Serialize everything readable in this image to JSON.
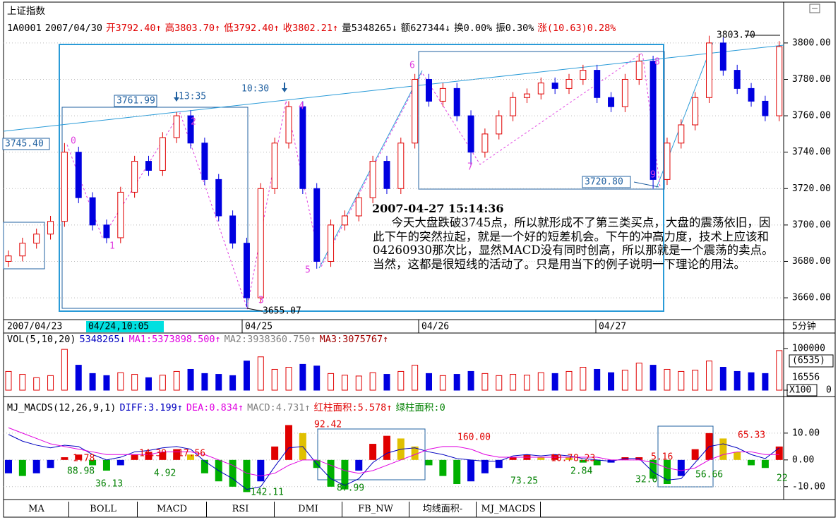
{
  "header": {
    "title": "上证指数",
    "items": [
      {
        "text": "1A0001",
        "color": "#000000"
      },
      {
        "text": "2007/04/30",
        "color": "#000000"
      },
      {
        "text": "开3792.40↑",
        "color": "#e00000"
      },
      {
        "text": "高3803.70↑",
        "color": "#e00000"
      },
      {
        "text": "低3792.40↑",
        "color": "#e00000"
      },
      {
        "text": "收3802.21↑",
        "color": "#e00000"
      },
      {
        "text": "量5348265↓",
        "color": "#000000"
      },
      {
        "text": "额627344↓",
        "color": "#000000"
      },
      {
        "text": "换0.00%",
        "color": "#000000"
      },
      {
        "text": "振0.30%",
        "color": "#000000"
      },
      {
        "text": "涨(10.63)0.28%",
        "color": "#e00000"
      }
    ]
  },
  "chart_data": [
    {
      "type": "candlestick",
      "open": [
        3680,
        3683,
        3690,
        3695,
        3702,
        3740,
        3715,
        3700,
        3693,
        3718,
        3735,
        3730,
        3748,
        3760,
        3745,
        3725,
        3705,
        3690,
        3660,
        3720,
        3745,
        3765,
        3720,
        3680,
        3700,
        3705,
        3715,
        3735,
        3720,
        3745,
        3780,
        3768,
        3775,
        3760,
        3740,
        3750,
        3760,
        3770,
        3772,
        3778,
        3775,
        3780,
        3785,
        3770,
        3765,
        3780,
        3790,
        3725,
        3745,
        3755,
        3770,
        3800,
        3785,
        3775,
        3768,
        3760
      ],
      "high": [
        3686,
        3693,
        3698,
        3705,
        3745,
        3743,
        3718,
        3703,
        3721,
        3738,
        3738,
        3751,
        3762,
        3763,
        3748,
        3728,
        3708,
        3693,
        3723,
        3748,
        3768,
        3768,
        3723,
        3703,
        3708,
        3718,
        3738,
        3738,
        3748,
        3783,
        3783,
        3778,
        3778,
        3763,
        3753,
        3763,
        3773,
        3775,
        3781,
        3781,
        3783,
        3788,
        3788,
        3773,
        3783,
        3794,
        3793,
        3748,
        3758,
        3773,
        3804,
        3803,
        3788,
        3778,
        3771,
        3801
      ],
      "low": [
        3677,
        3680,
        3687,
        3692,
        3699,
        3712,
        3697,
        3690,
        3690,
        3715,
        3727,
        3727,
        3745,
        3742,
        3722,
        3702,
        3687,
        3655,
        3657,
        3717,
        3742,
        3717,
        3676,
        3677,
        3697,
        3702,
        3712,
        3717,
        3717,
        3742,
        3765,
        3765,
        3757,
        3733,
        3737,
        3747,
        3757,
        3767,
        3769,
        3772,
        3772,
        3777,
        3767,
        3762,
        3762,
        3777,
        3720,
        3722,
        3742,
        3752,
        3767,
        3782,
        3772,
        3765,
        3757,
        3757
      ],
      "close": [
        3683,
        3690,
        3695,
        3702,
        3740,
        3715,
        3700,
        3693,
        3718,
        3735,
        3730,
        3748,
        3760,
        3745,
        3725,
        3705,
        3690,
        3660,
        3720,
        3745,
        3765,
        3720,
        3680,
        3700,
        3705,
        3715,
        3735,
        3720,
        3745,
        3780,
        3768,
        3775,
        3760,
        3740,
        3750,
        3760,
        3770,
        3772,
        3778,
        3775,
        3780,
        3785,
        3770,
        3765,
        3780,
        3790,
        3725,
        3745,
        3755,
        3770,
        3800,
        3785,
        3775,
        3768,
        3760,
        3798
      ],
      "ylim": [
        3648.4,
        3820.5
      ],
      "yticks": [
        {
          "value": 3800,
          "label": "3800.00"
        },
        {
          "value": 3780,
          "label": "3780.00"
        },
        {
          "value": 3760,
          "label": "3760.00"
        },
        {
          "value": 3740,
          "label": "3740.00"
        },
        {
          "value": 3720,
          "label": "3720.00"
        },
        {
          "value": 3700,
          "label": "3700.00"
        },
        {
          "value": 3680,
          "label": "3680.00"
        },
        {
          "value": 3660,
          "label": "3660.00"
        }
      ],
      "grid": true,
      "up_color": "#e00000",
      "down_color": "#0000e0",
      "price_labels": [
        "3745.40",
        "3761.99",
        "3720.80",
        "3803.70",
        "3655.07"
      ],
      "time_labels": [
        "13:35",
        "10:30"
      ],
      "wave_labels": [
        "0",
        "1",
        "2",
        "3",
        "4",
        "5",
        "6",
        "7",
        "8",
        "9"
      ],
      "note_time": "2007-04-27 15:14:36",
      "note": "今天大盘跌破3745点，所以就形成不了第三类买点，大盘的震荡依旧，因此下午的突然拉起，就是一个好的短差机会。下午的冲高力度，技术上应该和04260930那次比，显然MACD没有同时创高，所以那就是一个震荡的卖点。当然，这都是很短线的活动了。只是用当下的例子说明一下理论的用法。",
      "x_labels": [
        "2007/04/23",
        "04/24,10:05",
        "04/25",
        "04/26",
        "04/27",
        "5分钟"
      ]
    },
    {
      "type": "volume",
      "header": [
        {
          "text": "VOL(5,10,20)",
          "color": "#000000"
        },
        {
          "text": "5348265↓",
          "color": "#0000c0"
        },
        {
          "text": "MA1:5373898.500↑",
          "color": "#e000e0"
        },
        {
          "text": "MA2:3938360.750↑",
          "color": "#808080"
        },
        {
          "text": "MA3:3075767↑",
          "color": "#a00000"
        }
      ],
      "values": [
        45000,
        38000,
        30000,
        35000,
        98000,
        60000,
        40000,
        35000,
        42000,
        38000,
        30000,
        36000,
        45000,
        50000,
        40000,
        38000,
        35000,
        70000,
        80000,
        50000,
        55000,
        62000,
        58000,
        40000,
        36000,
        34000,
        42000,
        38000,
        45000,
        60000,
        40000,
        35000,
        38000,
        45000,
        40000,
        35000,
        38000,
        36000,
        42000,
        40000,
        45000,
        55000,
        50000,
        42000,
        48000,
        65000,
        60000,
        50000,
        45000,
        48000,
        70000,
        55000,
        45000,
        42000,
        40000,
        95000
      ],
      "ylim": [
        0,
        105000
      ],
      "yticks": [
        100000,
        0
      ],
      "side_labels": [
        "(6535)",
        "16556",
        "X100"
      ]
    },
    {
      "type": "macd",
      "header": [
        {
          "text": "MJ_MACDS(12,26,9,1)",
          "color": "#000000"
        },
        {
          "text": "DIFF:3.199↑",
          "color": "#0000c0"
        },
        {
          "text": "DEA:0.834↑",
          "color": "#e000e0"
        },
        {
          "text": "MACD:4.731↑",
          "color": "#808080"
        },
        {
          "text": "红柱面积:5.578↑",
          "color": "#e00000"
        },
        {
          "text": "绿柱面积:0",
          "color": "#008000"
        }
      ],
      "series": [
        {
          "name": "MACD",
          "values": [
            -5,
            -6,
            -5,
            -3,
            1,
            2,
            -2,
            -4,
            -2,
            2,
            3,
            3,
            4,
            2,
            -5,
            -8,
            -10,
            -12,
            -8,
            5,
            13,
            10,
            -3,
            -10,
            -11,
            -4,
            6,
            9,
            8,
            5,
            -2,
            -6,
            -9,
            -8,
            -5,
            -3,
            1,
            2,
            1,
            2,
            1,
            -1,
            -2,
            -1,
            1,
            1,
            -7,
            -9,
            -6,
            4,
            10,
            8,
            3,
            -2,
            -3,
            5
          ]
        },
        {
          "name": "DIFF",
          "color": "#0000c0",
          "values": [
            9.5,
            7,
            5.5,
            4.5,
            5.5,
            5,
            2,
            0,
            1,
            3,
            3.5,
            4.5,
            5,
            4,
            -0.5,
            -4,
            -7,
            -11,
            -10,
            -2.5,
            4.5,
            5,
            -1.5,
            -7,
            -9.5,
            -7,
            -1,
            2.5,
            4,
            4.5,
            3,
            2,
            0.5,
            0,
            -0.5,
            -0.5,
            1.5,
            2,
            1.5,
            2,
            1.5,
            0.5,
            0,
            -0.5,
            0.5,
            0.5,
            -4.5,
            -7.5,
            -7,
            -1,
            5,
            6,
            4.5,
            2,
            0.5,
            4.5
          ]
        },
        {
          "name": "DEA",
          "color": "#e000e0",
          "values": [
            12,
            10,
            8,
            6,
            5,
            4,
            3,
            2,
            2,
            2,
            2,
            3,
            3,
            3,
            2,
            0,
            -2,
            -5,
            -6,
            -5,
            -2,
            0,
            0,
            -2,
            -4,
            -5,
            -4,
            -2,
            0,
            2,
            4,
            5,
            5,
            4,
            2,
            1,
            1,
            1,
            1,
            1,
            1,
            1,
            1,
            0,
            0,
            0,
            -1,
            -3,
            -4,
            -3,
            0,
            2,
            3,
            3,
            2,
            2
          ]
        }
      ],
      "ylim": [
        -14,
        17.6
      ],
      "yticks": [
        {
          "value": 10,
          "label": "10.00"
        },
        {
          "value": 0,
          "label": "0.00"
        },
        {
          "value": -10,
          "label": "-10.00"
        }
      ],
      "annotations": [
        {
          "text": "1.78",
          "color": "#e00000"
        },
        {
          "text": "88.98",
          "color": "#008000"
        },
        {
          "text": "36.13",
          "color": "#008000"
        },
        {
          "text": "14.39",
          "color": "#e00000"
        },
        {
          "text": "4.92",
          "color": "#008000"
        },
        {
          "text": "17.56",
          "color": "#e00000"
        },
        {
          "text": "142.11",
          "color": "#008000"
        },
        {
          "text": "92.42",
          "color": "#e00000"
        },
        {
          "text": "87.99",
          "color": "#008000"
        },
        {
          "text": "160.00",
          "color": "#e00000"
        },
        {
          "text": "73.25",
          "color": "#008000"
        },
        {
          "text": "10.7",
          "color": "#e00000"
        },
        {
          "text": "8.23",
          "color": "#e00000"
        },
        {
          "text": "2.84",
          "color": "#008000"
        },
        {
          "text": "5.16",
          "color": "#e00000"
        },
        {
          "text": "32.0",
          "color": "#008000"
        },
        {
          "text": "56.66",
          "color": "#008000"
        },
        {
          "text": "65.33",
          "color": "#e00000"
        },
        {
          "text": "22",
          "color": "#008000"
        }
      ]
    }
  ],
  "tabs": [
    "MA",
    "BOLL",
    "MACD",
    "RSI",
    "DMI",
    "FB_NW",
    "均线面积-",
    "MJ_MACDS"
  ]
}
